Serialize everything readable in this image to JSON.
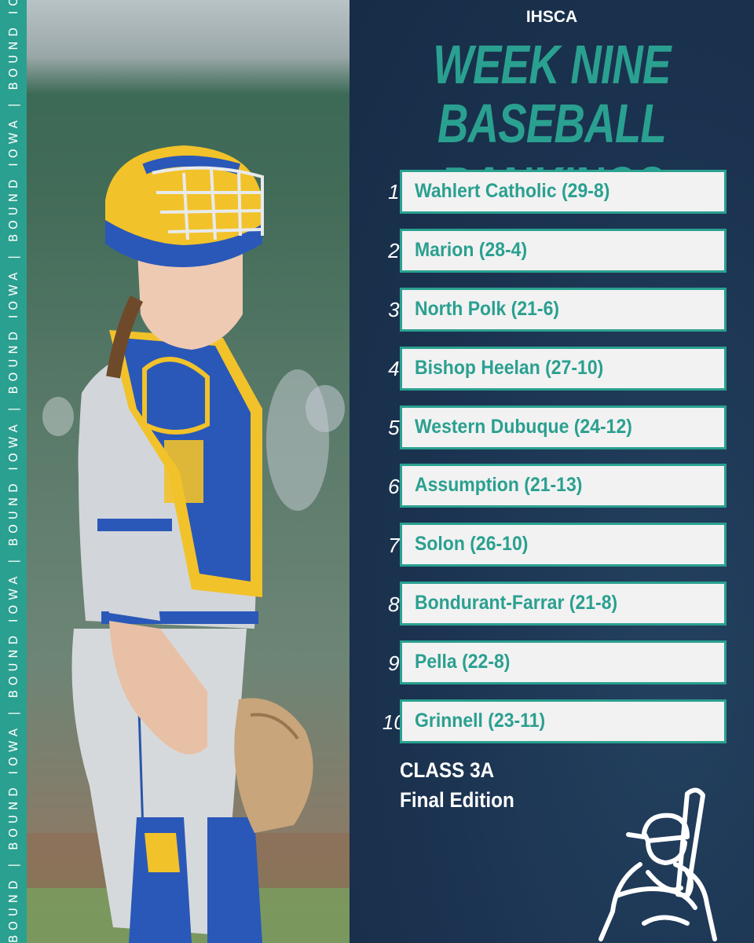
{
  "brand_strip": "BOUND | BOUND IOWA | BOUND IOWA | BOUND IOWA | BOUND IOWA | BOUND IOWA | BOUND IOWA | BOUND IOWA | BOUND IOWA | BOUND",
  "org": "IHSCA",
  "title_line1": "WEEK NINE",
  "title_line2": "BASEBALL RANKINGS",
  "rankings": [
    {
      "rank": "1.",
      "team": "Wahlert Catholic (29-8)"
    },
    {
      "rank": "2.",
      "team": "Marion (28-4)"
    },
    {
      "rank": "3.",
      "team": "North Polk (21-6)"
    },
    {
      "rank": "4.",
      "team": "Bishop Heelan (27-10)"
    },
    {
      "rank": "5.",
      "team": "Western Dubuque (24-12)"
    },
    {
      "rank": "6.",
      "team": "Assumption (21-13)"
    },
    {
      "rank": "7.",
      "team": "Solon (26-10)"
    },
    {
      "rank": "8.",
      "team": "Bondurant-Farrar (21-8)"
    },
    {
      "rank": "9.",
      "team": "Pella (22-8)"
    },
    {
      "rank": "10.",
      "team": "Grinnell (23-11)"
    }
  ],
  "class_label": "CLASS 3A",
  "edition_label": "Final Edition",
  "colors": {
    "accent": "#2aa090",
    "background": "#1c3350",
    "box": "#f2f2f2"
  },
  "icons": {
    "logo": "baseball-batter-icon"
  }
}
